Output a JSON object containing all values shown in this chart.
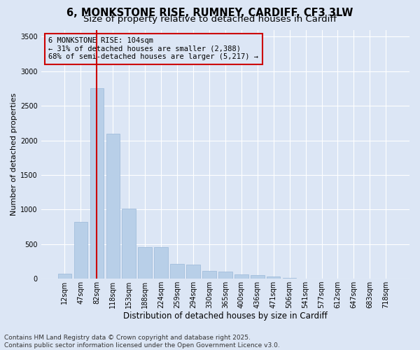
{
  "title_line1": "6, MONKSTONE RISE, RUMNEY, CARDIFF, CF3 3LW",
  "title_line2": "Size of property relative to detached houses in Cardiff",
  "xlabel": "Distribution of detached houses by size in Cardiff",
  "ylabel": "Number of detached properties",
  "categories": [
    "12sqm",
    "47sqm",
    "82sqm",
    "118sqm",
    "153sqm",
    "188sqm",
    "224sqm",
    "259sqm",
    "294sqm",
    "330sqm",
    "365sqm",
    "400sqm",
    "436sqm",
    "471sqm",
    "506sqm",
    "541sqm",
    "577sqm",
    "612sqm",
    "647sqm",
    "683sqm",
    "718sqm"
  ],
  "values": [
    75,
    820,
    2750,
    2100,
    1010,
    460,
    460,
    210,
    200,
    110,
    100,
    60,
    50,
    30,
    10,
    5,
    5,
    3,
    2,
    1,
    1
  ],
  "bar_color": "#b8cfe8",
  "bar_edge_color": "#9ab8d8",
  "vline_x": 2,
  "vline_color": "#cc0000",
  "annotation_box_text": "6 MONKSTONE RISE: 104sqm\n← 31% of detached houses are smaller (2,388)\n68% of semi-detached houses are larger (5,217) →",
  "box_edge_color": "#cc0000",
  "ylim": [
    0,
    3600
  ],
  "yticks": [
    0,
    500,
    1000,
    1500,
    2000,
    2500,
    3000,
    3500
  ],
  "background_color": "#dce6f5",
  "grid_color": "#ffffff",
  "footer_line1": "Contains HM Land Registry data © Crown copyright and database right 2025.",
  "footer_line2": "Contains public sector information licensed under the Open Government Licence v3.0.",
  "title_fontsize": 10.5,
  "subtitle_fontsize": 9.5,
  "xlabel_fontsize": 8.5,
  "ylabel_fontsize": 8,
  "tick_fontsize": 7,
  "annotation_fontsize": 7.5,
  "footer_fontsize": 6.5
}
